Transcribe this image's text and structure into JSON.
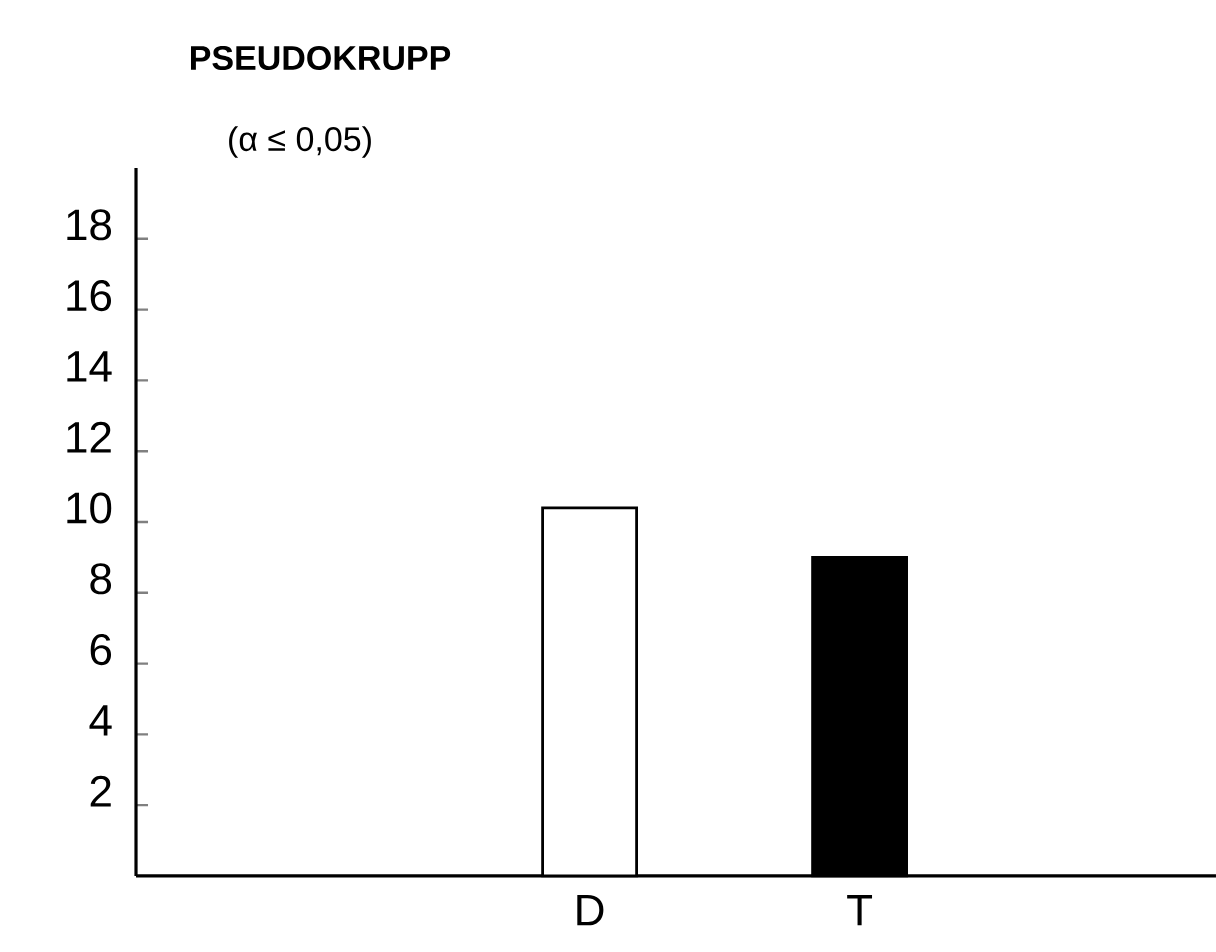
{
  "chart_data": {
    "type": "bar",
    "title": "PSEUDOKRUPP",
    "subtitle": "(α ≤ 0,05)",
    "categories": [
      "D",
      "T"
    ],
    "values": [
      10.4,
      9.0
    ],
    "colors": [
      "#ffffff",
      "#000000"
    ],
    "ylim": [
      0,
      20
    ],
    "yticks": [
      2,
      4,
      6,
      8,
      10,
      12,
      14,
      16,
      18
    ]
  }
}
